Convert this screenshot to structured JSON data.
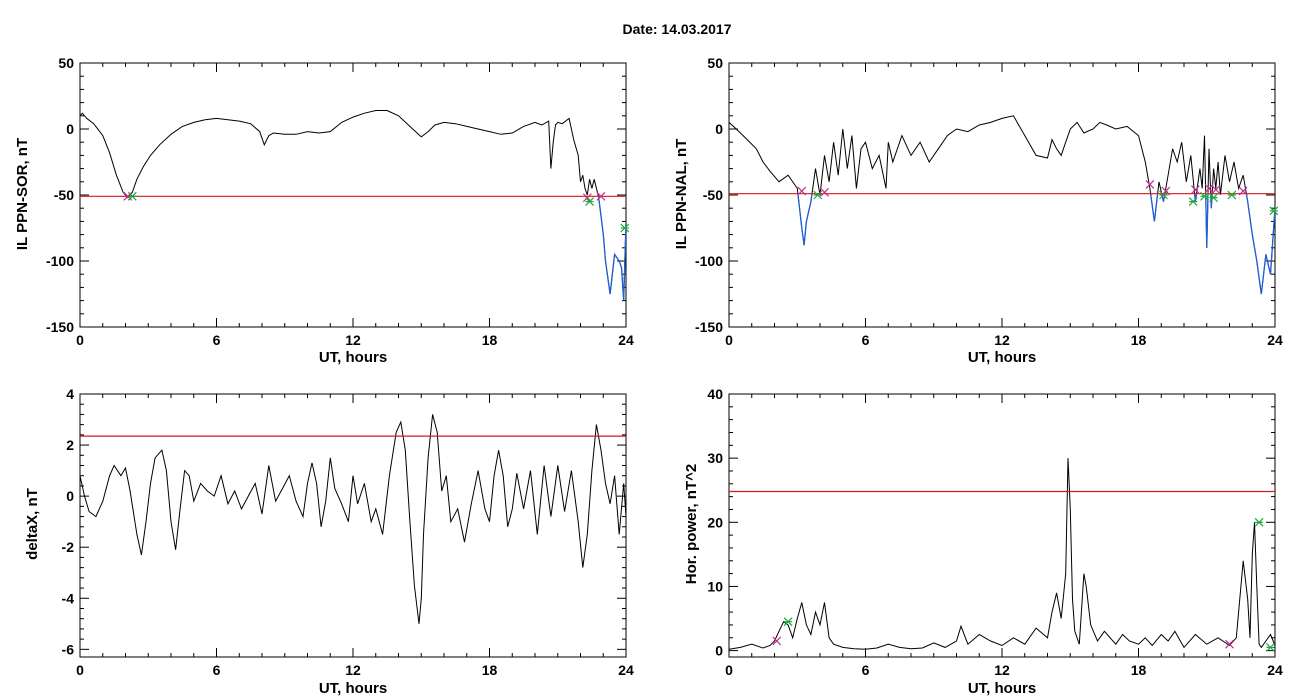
{
  "figure": {
    "date_label": "Date:  14.03.2017"
  },
  "colors": {
    "trace": "#000000",
    "threshold": "#d11a1a",
    "below": "#1f5fd8",
    "marker_a": "#c0308a",
    "marker_b": "#1aa83a"
  },
  "chart_data": [
    {
      "id": "p1",
      "type": "line",
      "ylabel": "IL PPN-SOR, nT",
      "xlabel": "UT, hours",
      "xlim": [
        0,
        24
      ],
      "ylim": [
        -150,
        50
      ],
      "xticks": [
        0,
        6,
        12,
        18,
        24
      ],
      "yticks": [
        -150,
        -100,
        -50,
        0,
        50
      ],
      "threshold": -51,
      "highlight_below_threshold": true,
      "series": [
        {
          "x": [
            0,
            0.1,
            0.3,
            0.6,
            1.0,
            1.3,
            1.6,
            1.9,
            2.1,
            2.3,
            2.5,
            2.8,
            3.1,
            3.5,
            4.0,
            4.5,
            5.0,
            5.5,
            6.0,
            6.5,
            7.0,
            7.5,
            7.9,
            8.1,
            8.3,
            8.5,
            9.0,
            9.5,
            10,
            10.5,
            11,
            11.5,
            12,
            12.5,
            13,
            13.5,
            14,
            14.5,
            15,
            15.3,
            15.6,
            16,
            16.5,
            17,
            17.5,
            18,
            18.5,
            19,
            19.5,
            20,
            20.3,
            20.6,
            20.7,
            20.8,
            20.9,
            21.0,
            21.2,
            21.5,
            21.7,
            21.9,
            22.0,
            22.1,
            22.2,
            22.3,
            22.4,
            22.5,
            22.6,
            22.8,
            23.0,
            23.1,
            23.3,
            23.5,
            23.7,
            23.8,
            23.9,
            24.0
          ],
          "y": [
            10,
            12,
            8,
            4,
            -5,
            -18,
            -35,
            -48,
            -52,
            -48,
            -38,
            -28,
            -20,
            -12,
            -4,
            2,
            5,
            7,
            8,
            7,
            6,
            4,
            -2,
            -12,
            -5,
            -3,
            -4,
            -4,
            -2,
            -3,
            -2,
            5,
            9,
            12,
            14,
            14,
            10,
            2,
            -6,
            -2,
            3,
            5,
            4,
            2,
            0,
            -2,
            -4,
            -3,
            2,
            5,
            3,
            6,
            -30,
            -10,
            3,
            5,
            4,
            8,
            -8,
            -20,
            -40,
            -35,
            -45,
            -50,
            -38,
            -45,
            -38,
            -52,
            -80,
            -100,
            -125,
            -95,
            -100,
            -105,
            -130,
            -70
          ]
        }
      ],
      "markers": [
        {
          "x": 2.1,
          "y": -51,
          "style": "a"
        },
        {
          "x": 2.3,
          "y": -51,
          "style": "b"
        },
        {
          "x": 22.3,
          "y": -52,
          "style": "a"
        },
        {
          "x": 22.4,
          "y": -55,
          "style": "b"
        },
        {
          "x": 22.9,
          "y": -51,
          "style": "a"
        },
        {
          "x": 23.95,
          "y": -75,
          "style": "b"
        }
      ]
    },
    {
      "id": "p2",
      "type": "line",
      "ylabel": "IL PPN-NAL, nT",
      "xlabel": "UT, hours",
      "xlim": [
        0,
        24
      ],
      "ylim": [
        -150,
        50
      ],
      "xticks": [
        0,
        6,
        12,
        18,
        24
      ],
      "yticks": [
        -150,
        -100,
        -50,
        0,
        50
      ],
      "threshold": -49,
      "highlight_below_threshold": true,
      "series": [
        {
          "x": [
            0,
            0.2,
            0.5,
            0.8,
            1.2,
            1.5,
            1.8,
            2.2,
            2.6,
            3.0,
            3.2,
            3.3,
            3.4,
            3.6,
            3.8,
            4.0,
            4.2,
            4.4,
            4.6,
            4.8,
            5.0,
            5.2,
            5.4,
            5.6,
            5.8,
            6.0,
            6.3,
            6.6,
            6.9,
            7.0,
            7.2,
            7.6,
            8.0,
            8.4,
            8.8,
            9.2,
            9.6,
            10,
            10.5,
            11,
            11.5,
            12,
            12.5,
            13,
            13.5,
            14,
            14.2,
            14.4,
            14.6,
            14.8,
            15,
            15.3,
            15.6,
            16,
            16.3,
            16.6,
            17,
            17.5,
            18,
            18.3,
            18.5,
            18.7,
            18.9,
            19.1,
            19.3,
            19.5,
            19.7,
            19.9,
            20.1,
            20.3,
            20.5,
            20.7,
            20.8,
            20.9,
            21.0,
            21.1,
            21.2,
            21.3,
            21.4,
            21.5,
            21.6,
            21.8,
            22.0,
            22.2,
            22.4,
            22.6,
            22.8,
            23.0,
            23.2,
            23.4,
            23.6,
            23.8,
            24.0
          ],
          "y": [
            5,
            2,
            -3,
            -8,
            -15,
            -25,
            -32,
            -40,
            -35,
            -45,
            -75,
            -88,
            -70,
            -55,
            -30,
            -50,
            -20,
            -40,
            -10,
            -35,
            0,
            -30,
            -5,
            -45,
            -15,
            -10,
            -30,
            -20,
            -45,
            -10,
            -25,
            -5,
            -20,
            -10,
            -25,
            -15,
            -5,
            0,
            -2,
            3,
            5,
            8,
            10,
            -5,
            -20,
            -22,
            -8,
            -15,
            -20,
            -10,
            0,
            5,
            -3,
            0,
            5,
            3,
            0,
            2,
            -5,
            -25,
            -45,
            -70,
            -40,
            -55,
            -35,
            -15,
            -25,
            -10,
            -40,
            -20,
            -55,
            -30,
            -45,
            -5,
            -90,
            -15,
            -60,
            -30,
            -45,
            -25,
            -50,
            -20,
            -40,
            -25,
            -45,
            -35,
            -55,
            -80,
            -100,
            -125,
            -95,
            -110,
            -60
          ]
        }
      ],
      "markers": [
        {
          "x": 3.2,
          "y": -47,
          "style": "a"
        },
        {
          "x": 3.9,
          "y": -50,
          "style": "b"
        },
        {
          "x": 4.2,
          "y": -48,
          "style": "a"
        },
        {
          "x": 18.5,
          "y": -42,
          "style": "a"
        },
        {
          "x": 19.1,
          "y": -50,
          "style": "b"
        },
        {
          "x": 19.2,
          "y": -47,
          "style": "a"
        },
        {
          "x": 20.4,
          "y": -55,
          "style": "b"
        },
        {
          "x": 20.5,
          "y": -46,
          "style": "a"
        },
        {
          "x": 20.9,
          "y": -51,
          "style": "b"
        },
        {
          "x": 21.1,
          "y": -45,
          "style": "a"
        },
        {
          "x": 21.3,
          "y": -52,
          "style": "b"
        },
        {
          "x": 21.4,
          "y": -46,
          "style": "a"
        },
        {
          "x": 22.1,
          "y": -50,
          "style": "b"
        },
        {
          "x": 22.6,
          "y": -47,
          "style": "a"
        },
        {
          "x": 23.95,
          "y": -62,
          "style": "b"
        }
      ]
    },
    {
      "id": "p3",
      "type": "line",
      "ylabel": "deltaX, nT",
      "xlabel": "UT, hours",
      "xlim": [
        0,
        24
      ],
      "ylim": [
        -6.3,
        4
      ],
      "xticks": [
        0,
        6,
        12,
        18,
        24
      ],
      "yticks": [
        -6,
        -4,
        -2,
        0,
        2,
        4
      ],
      "threshold": 2.35,
      "highlight_below_threshold": false,
      "series": [
        {
          "x": [
            0,
            0.2,
            0.4,
            0.7,
            1.0,
            1.3,
            1.5,
            1.8,
            2.0,
            2.2,
            2.5,
            2.7,
            2.9,
            3.1,
            3.3,
            3.6,
            3.8,
            4.0,
            4.2,
            4.4,
            4.6,
            4.8,
            5.0,
            5.3,
            5.6,
            5.9,
            6.2,
            6.5,
            6.8,
            7.1,
            7.4,
            7.7,
            8.0,
            8.3,
            8.6,
            8.9,
            9.2,
            9.5,
            9.8,
            10.0,
            10.2,
            10.4,
            10.6,
            10.8,
            11.0,
            11.2,
            11.5,
            11.8,
            12.0,
            12.2,
            12.5,
            12.8,
            13.0,
            13.3,
            13.6,
            13.9,
            14.1,
            14.3,
            14.5,
            14.7,
            14.9,
            15.0,
            15.1,
            15.3,
            15.5,
            15.7,
            15.9,
            16.1,
            16.3,
            16.6,
            16.9,
            17.2,
            17.5,
            17.8,
            18.0,
            18.2,
            18.4,
            18.6,
            18.8,
            19.0,
            19.2,
            19.5,
            19.8,
            20.1,
            20.4,
            20.7,
            21.0,
            21.3,
            21.6,
            21.9,
            22.1,
            22.3,
            22.5,
            22.7,
            22.9,
            23.1,
            23.3,
            23.5,
            23.7,
            23.9,
            24.0
          ],
          "y": [
            0.8,
            0,
            -0.6,
            -0.8,
            -0.2,
            0.8,
            1.2,
            0.8,
            1.1,
            0.2,
            -1.5,
            -2.3,
            -1,
            0.5,
            1.5,
            1.8,
            1,
            -1,
            -2.1,
            -0.5,
            1,
            0.8,
            -0.2,
            0.5,
            0.2,
            0,
            0.8,
            -0.3,
            0.2,
            -0.5,
            0,
            0.5,
            -0.7,
            1.2,
            -0.2,
            0.3,
            0.8,
            -0.2,
            -0.8,
            0.5,
            1.3,
            0.5,
            -1.2,
            -0.2,
            1.5,
            0.3,
            -0.3,
            -1,
            0.8,
            -0.3,
            0.5,
            -1,
            -0.5,
            -1.5,
            0.8,
            2.5,
            2.9,
            1.8,
            -1,
            -3.5,
            -5,
            -4,
            -1.5,
            1.5,
            3.2,
            2.5,
            0.2,
            0.8,
            -1,
            -0.5,
            -1.8,
            -0.3,
            1,
            -0.5,
            -1,
            0.8,
            1.8,
            0.8,
            -1.2,
            -0.5,
            0.9,
            -0.5,
            1,
            -1.5,
            1.2,
            -0.8,
            1.2,
            -0.6,
            1,
            -1,
            -2.8,
            -1.5,
            1,
            2.8,
            1.8,
            0.5,
            -0.3,
            0.8,
            -1.5,
            0.5,
            -0.8
          ]
        }
      ],
      "markers": []
    },
    {
      "id": "p4",
      "type": "line",
      "ylabel": "Hor. power, nT^2",
      "xlabel": "UT, hours",
      "xlim": [
        0,
        24
      ],
      "ylim": [
        -1,
        40
      ],
      "xticks": [
        0,
        6,
        12,
        18,
        24
      ],
      "yticks": [
        0,
        10,
        20,
        30,
        40
      ],
      "threshold": 24.8,
      "highlight_below_threshold": false,
      "series": [
        {
          "x": [
            0,
            0.5,
            1.0,
            1.5,
            1.8,
            2.0,
            2.2,
            2.4,
            2.6,
            2.8,
            3.0,
            3.2,
            3.4,
            3.6,
            3.8,
            4.0,
            4.2,
            4.4,
            4.6,
            5.0,
            5.5,
            6.0,
            6.5,
            7.0,
            7.5,
            8.0,
            8.5,
            9.0,
            9.5,
            10.0,
            10.2,
            10.5,
            11.0,
            11.5,
            12.0,
            12.5,
            13.0,
            13.5,
            14.0,
            14.2,
            14.4,
            14.6,
            14.8,
            14.9,
            15.0,
            15.1,
            15.2,
            15.4,
            15.6,
            15.7,
            15.9,
            16.2,
            16.5,
            17.0,
            17.3,
            17.6,
            18.0,
            18.3,
            18.6,
            19.0,
            19.3,
            19.6,
            20.0,
            20.5,
            21.0,
            21.5,
            22.0,
            22.3,
            22.6,
            22.8,
            22.9,
            23.0,
            23.1,
            23.2,
            23.3,
            23.4,
            23.6,
            23.8,
            24.0
          ],
          "y": [
            0.2,
            0.5,
            1,
            0.4,
            0.8,
            1.5,
            3,
            4.5,
            4,
            2,
            5,
            7.5,
            4,
            2.5,
            6,
            4,
            7.5,
            2,
            1,
            0.5,
            0.3,
            0.2,
            0.4,
            1,
            0.5,
            0.3,
            0.4,
            1.2,
            0.5,
            1.5,
            3.8,
            1,
            2.5,
            1.5,
            0.8,
            2,
            1,
            3.5,
            2,
            6,
            9,
            5,
            12,
            30,
            22,
            8,
            3,
            1,
            12,
            10,
            4,
            1.5,
            3,
            1,
            2.5,
            1.5,
            1,
            2,
            0.8,
            2.5,
            1.5,
            3,
            0.5,
            2.5,
            1,
            2,
            0.8,
            2,
            14,
            8,
            2,
            15,
            20,
            10,
            1,
            0.5,
            1.5,
            2.5,
            0.8
          ]
        }
      ],
      "markers": [
        {
          "x": 2.1,
          "y": 1.5,
          "style": "a"
        },
        {
          "x": 2.6,
          "y": 4.5,
          "style": "b"
        },
        {
          "x": 22.0,
          "y": 1.0,
          "style": "a"
        },
        {
          "x": 23.3,
          "y": 20,
          "style": "b"
        },
        {
          "x": 23.8,
          "y": 0.5,
          "style": "b"
        }
      ]
    }
  ]
}
